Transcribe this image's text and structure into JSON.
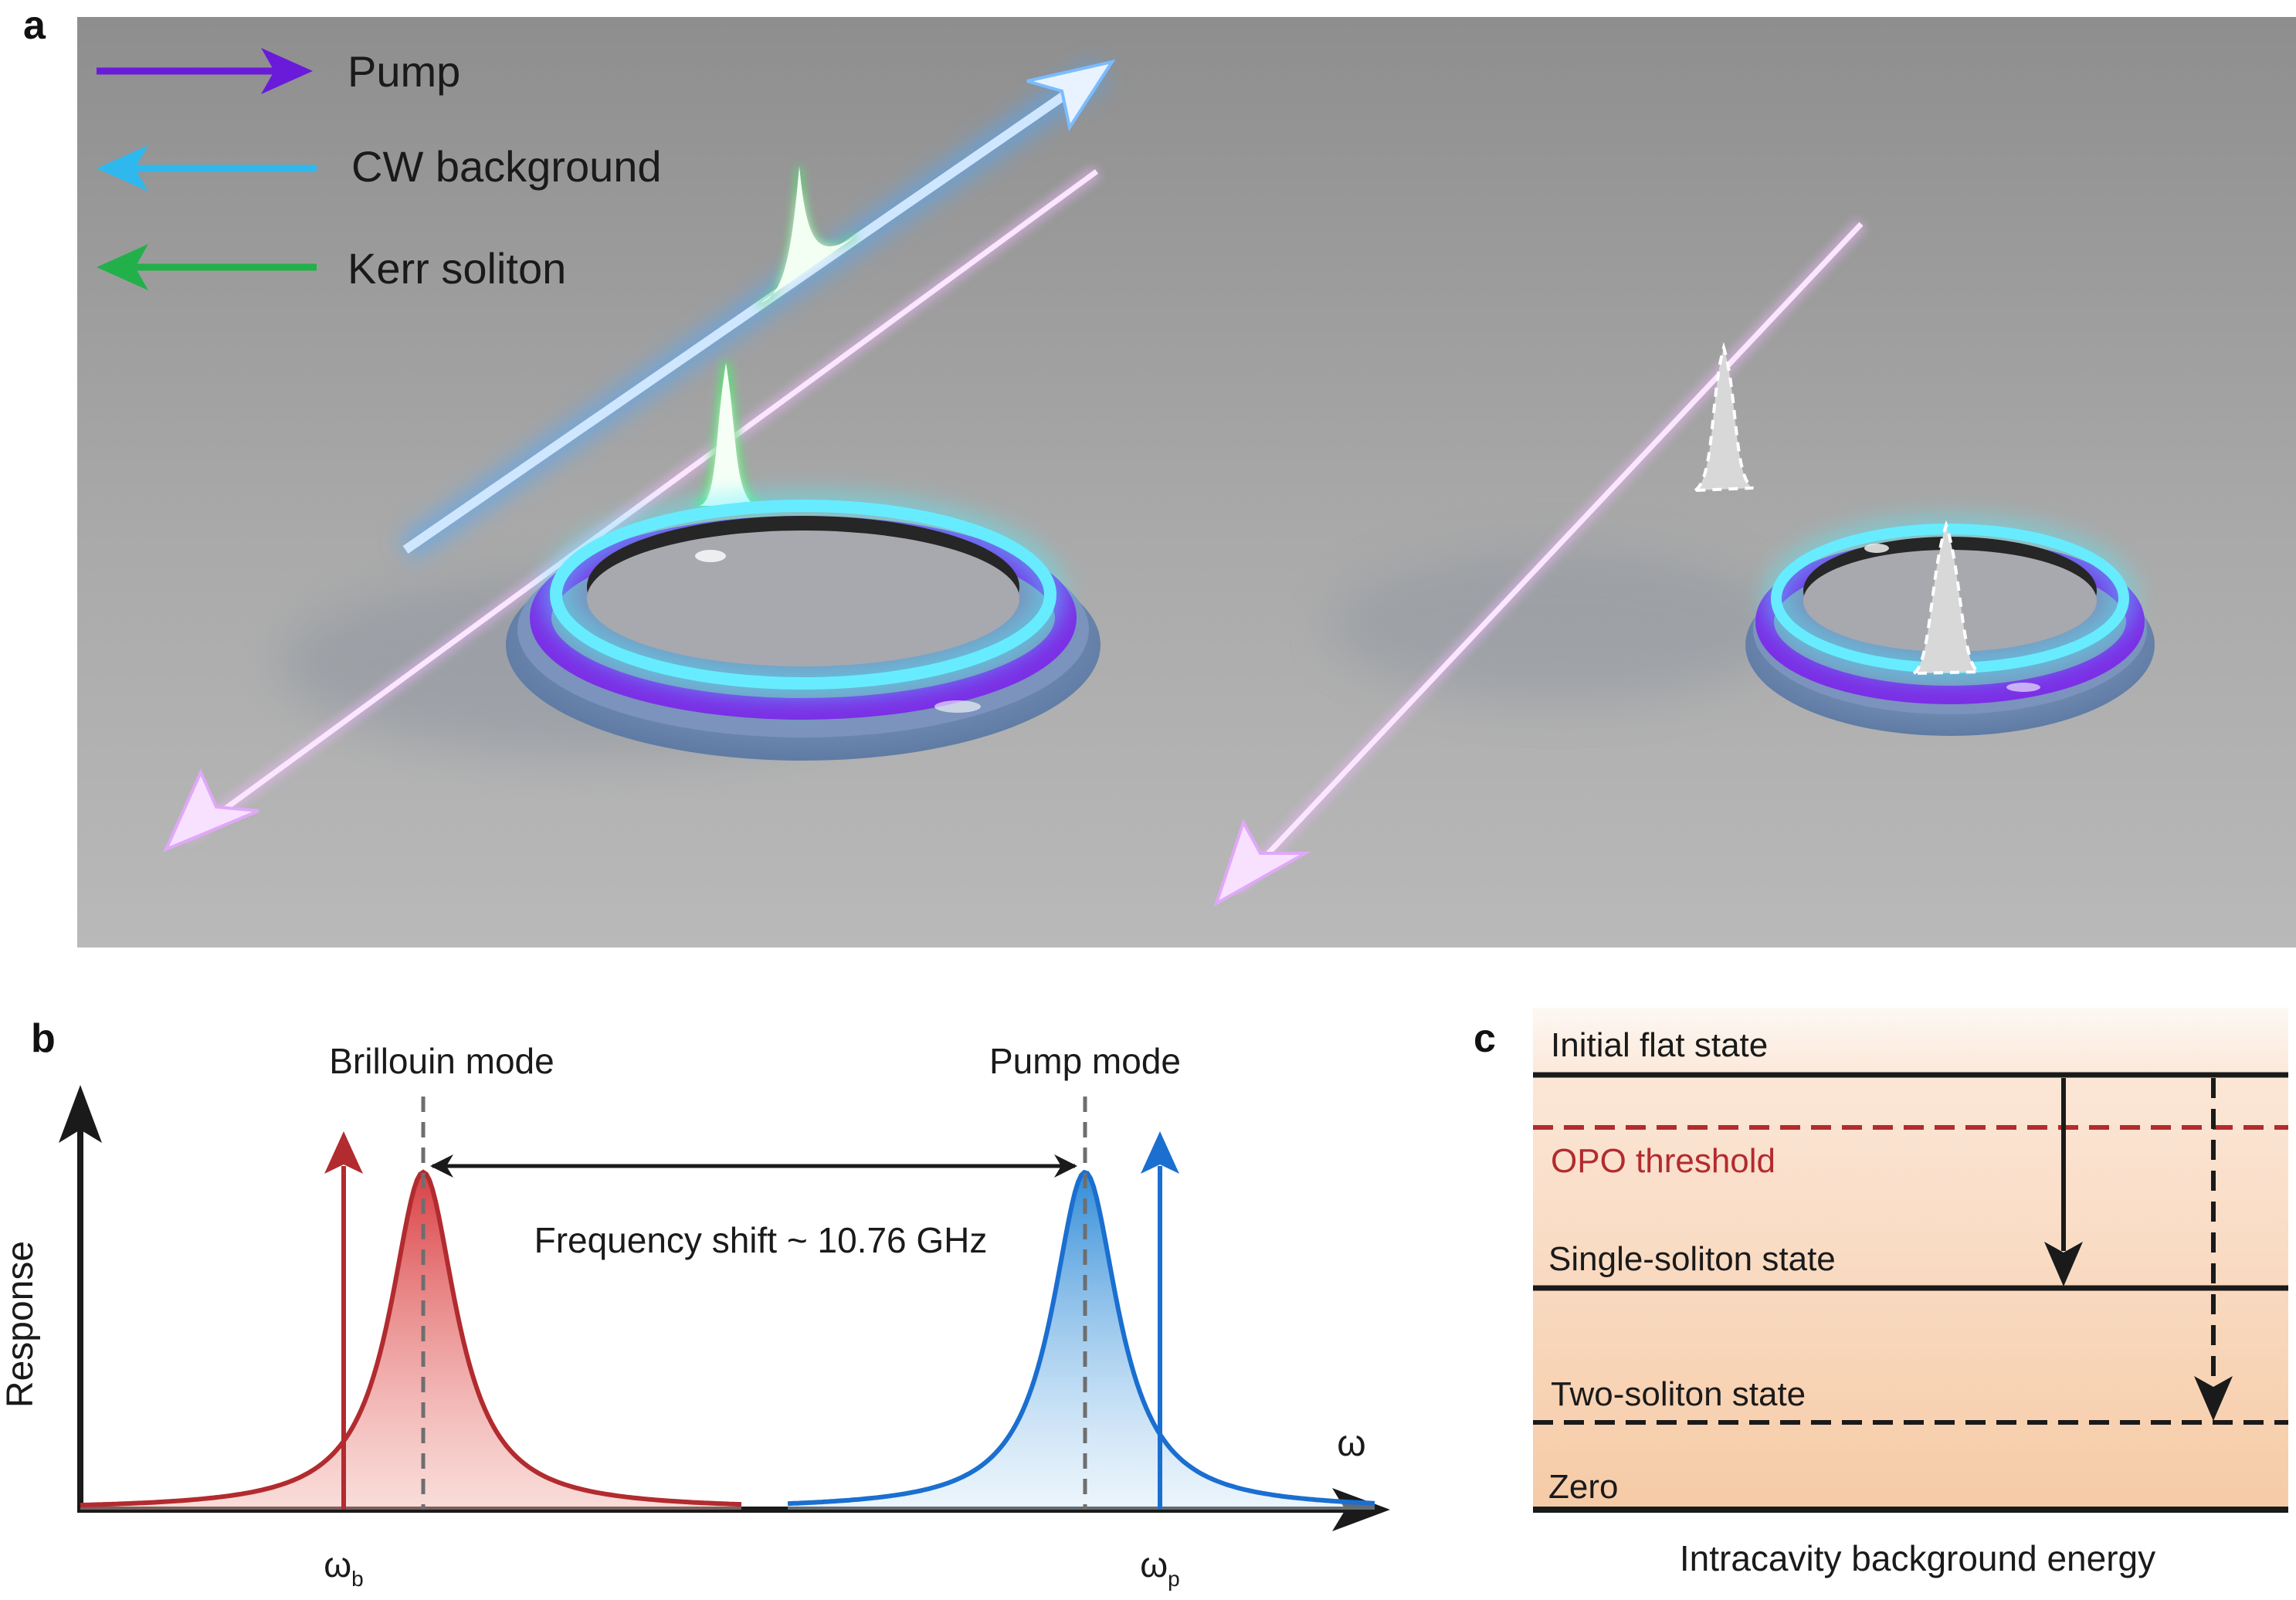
{
  "panel_a": {
    "label": "a",
    "legend": [
      {
        "text": "Pump",
        "color": "#6a1bd9"
      },
      {
        "text": "CW background",
        "color": "#2fb8ee"
      },
      {
        "text": "Kerr soliton",
        "color": "#22b04a"
      }
    ]
  },
  "panel_b": {
    "label": "b",
    "ylabel": "Response",
    "xlabel": "ω",
    "brillouin_label": "Brillouin mode",
    "pump_label": "Pump mode",
    "shift_label": "Frequency shift ~ 10.76 GHz",
    "omega_b": {
      "base": "ω",
      "sub": "b"
    },
    "omega_p": {
      "base": "ω",
      "sub": "p"
    },
    "colors": {
      "brillouin": "#b22b2f",
      "pump": "#1a6fd0"
    }
  },
  "panel_c": {
    "label": "c",
    "xlabel": "Intracavity background energy",
    "levels": [
      {
        "text": "Initial flat state",
        "style": "solid"
      },
      {
        "text": "OPO threshold",
        "style": "dashed-red"
      },
      {
        "text": "Single-soliton state",
        "style": "solid"
      },
      {
        "text": "Two-soliton state",
        "style": "dashed"
      },
      {
        "text": "Zero",
        "style": "solid"
      }
    ],
    "colors": {
      "threshold": "#b22b2f"
    }
  }
}
